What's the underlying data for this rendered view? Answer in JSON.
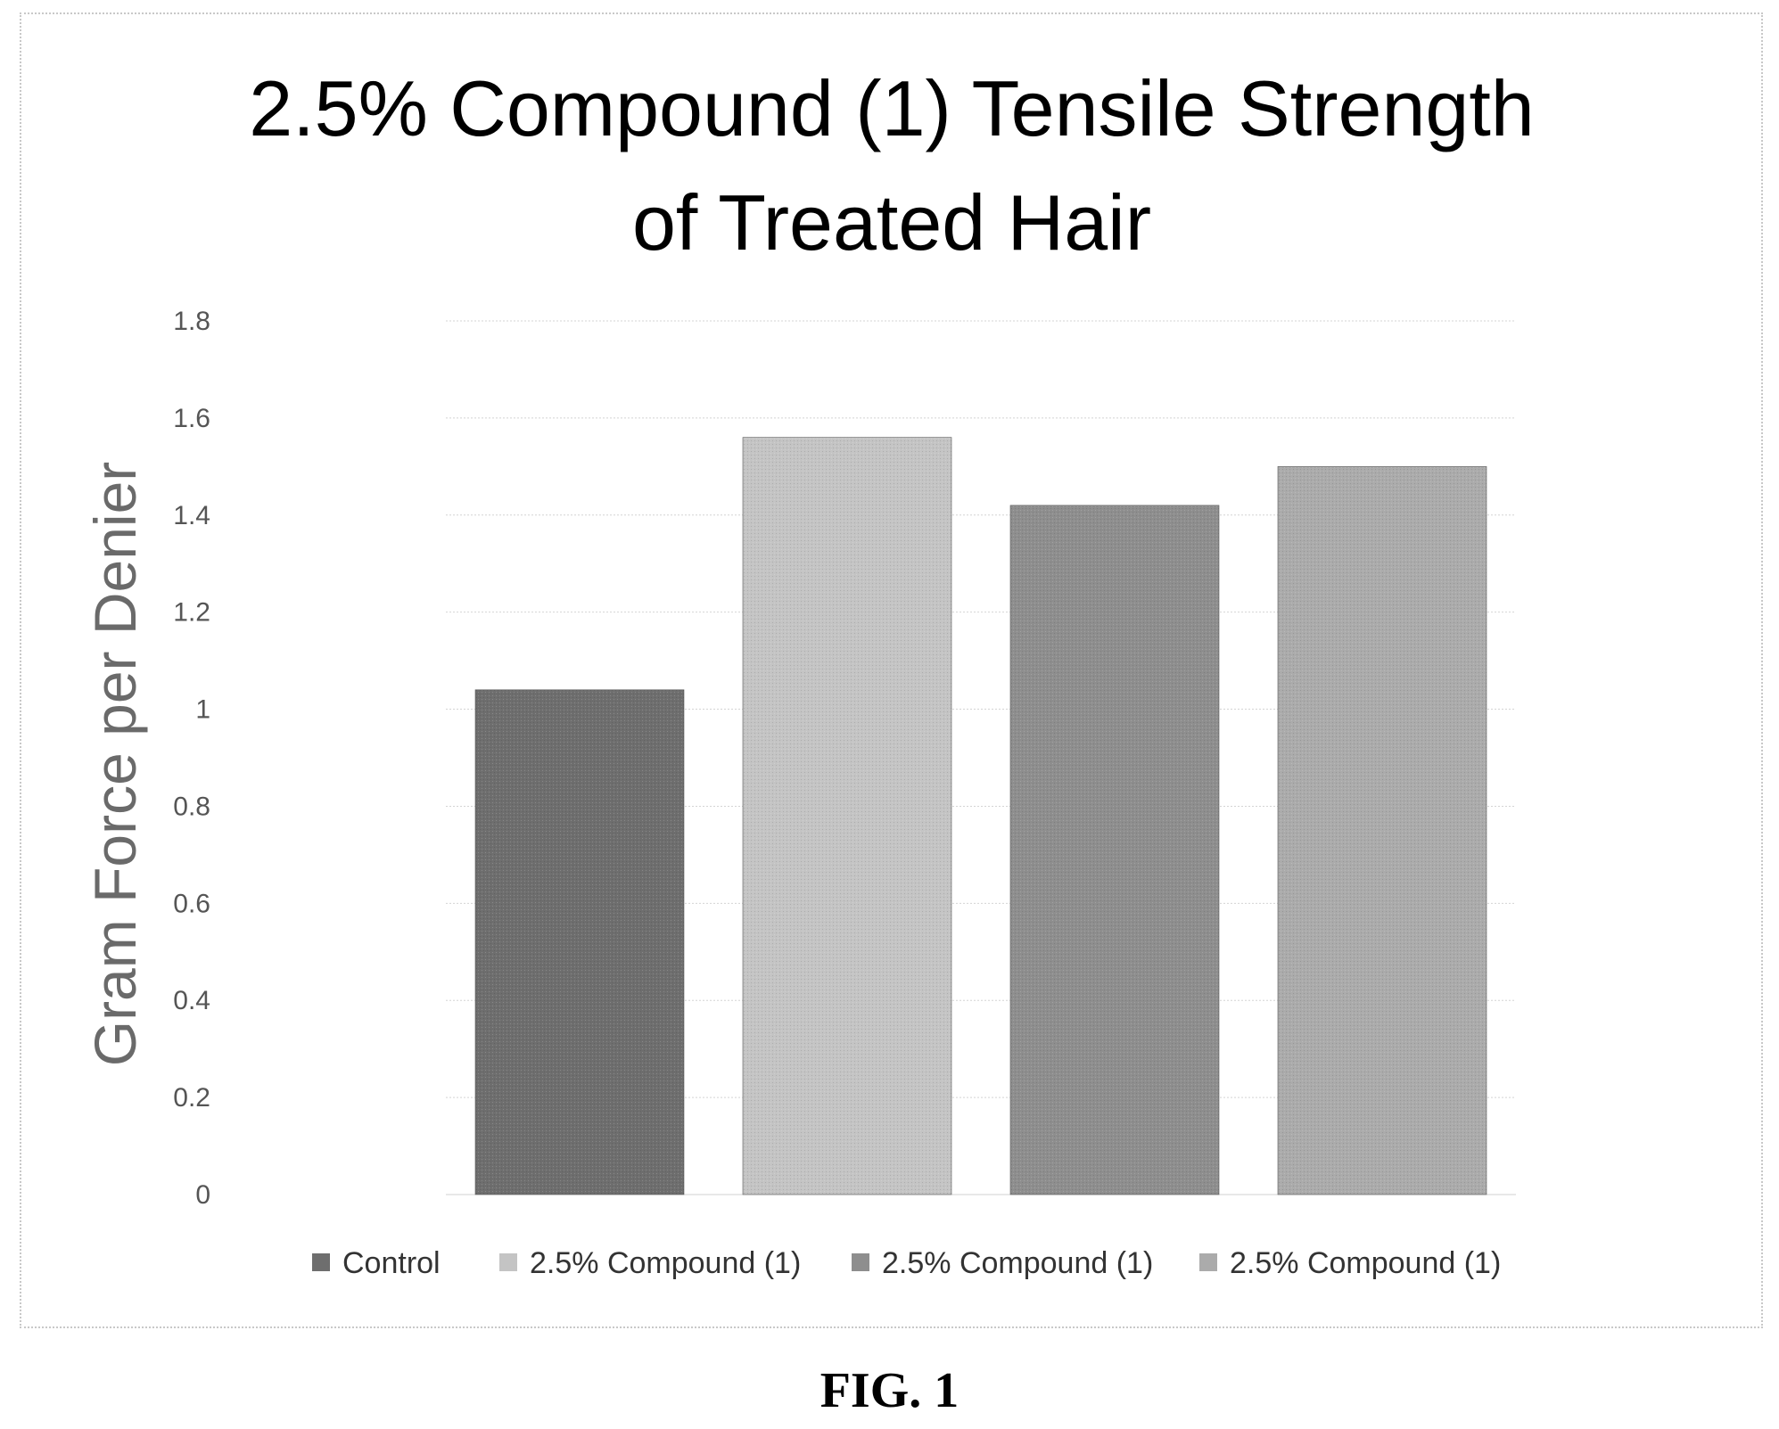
{
  "chart_data": {
    "type": "bar",
    "title_lines": [
      "2.5% Compound (1) Tensile Strength",
      "of Treated Hair"
    ],
    "xlabel": "",
    "ylabel": "Gram Force per Denier",
    "ylim": [
      0,
      1.8
    ],
    "yticks": [
      "0",
      "0.2",
      "0.4",
      "0.6",
      "0.8",
      "1",
      "1.2",
      "1.4",
      "1.6",
      "1.8"
    ],
    "grid": true,
    "legend_position": "bottom",
    "series": [
      {
        "name": "Control",
        "values": [
          1.04
        ],
        "color": "#6e6e6e"
      },
      {
        "name": "2.5% Compound (1)",
        "values": [
          1.56
        ],
        "color": "#c4c4c4"
      },
      {
        "name": "2.5% Compound (1)",
        "values": [
          1.42
        ],
        "color": "#8e8e8e"
      },
      {
        "name": "2.5%  Compound (1)",
        "values": [
          1.5
        ],
        "color": "#ababab"
      }
    ]
  },
  "caption": "FIG. 1"
}
